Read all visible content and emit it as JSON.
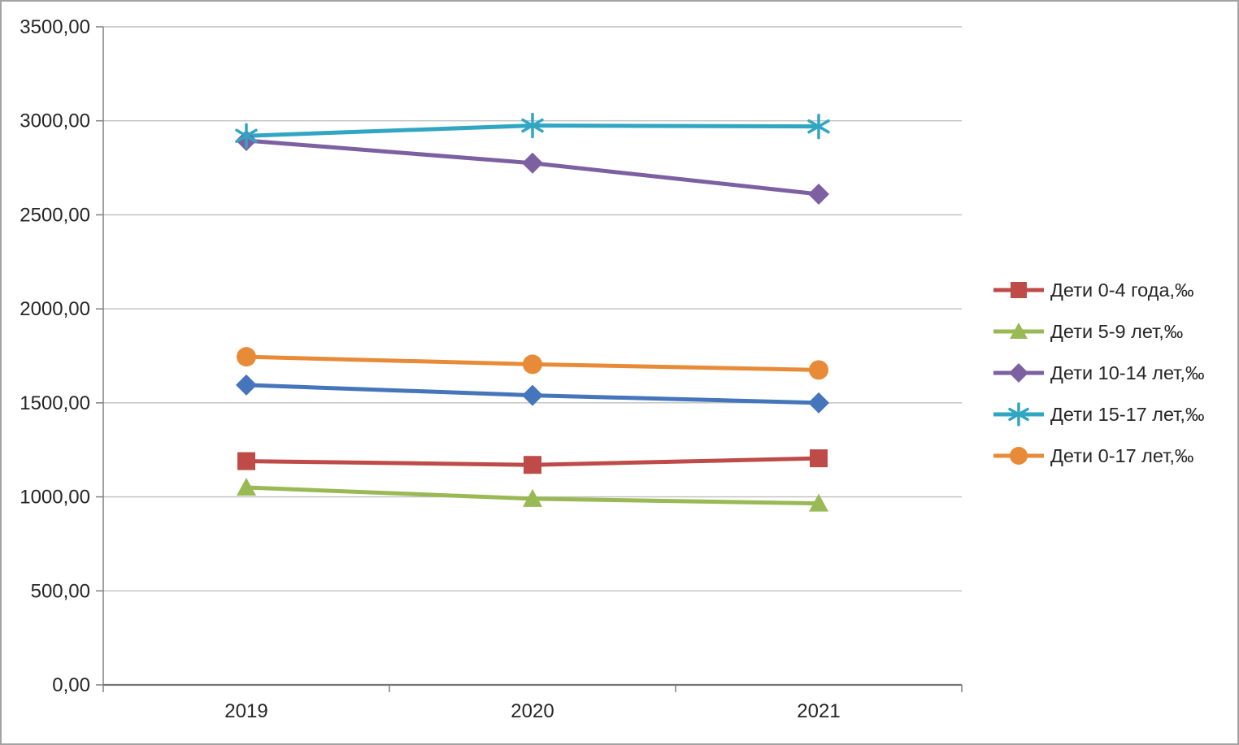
{
  "chart_data": {
    "type": "line",
    "title": "",
    "xlabel": "",
    "ylabel": "",
    "categories": [
      "2019",
      "2020",
      "2021"
    ],
    "ylim": [
      0,
      3500
    ],
    "ytick_step": 500,
    "yticks": [
      {
        "value": 3500,
        "label": "3500,00"
      },
      {
        "value": 3000,
        "label": "3000,00"
      },
      {
        "value": 2500,
        "label": "2500,00"
      },
      {
        "value": 2000,
        "label": "2000,00"
      },
      {
        "value": 1500,
        "label": "1500,00"
      },
      {
        "value": 1000,
        "label": "1000,00"
      },
      {
        "value": 500,
        "label": "500,00"
      },
      {
        "value": 0,
        "label": "0,00"
      }
    ],
    "grid": true,
    "legend_position": "right",
    "series": [
      {
        "name": "",
        "marker": "diamond",
        "color": "#4575BA",
        "in_legend": false,
        "values": [
          1595,
          1540,
          1500
        ]
      },
      {
        "name": "Дети 0-4 года,‰",
        "marker": "square",
        "color": "#BE4B48",
        "in_legend": true,
        "values": [
          1190,
          1170,
          1205
        ]
      },
      {
        "name": "Дети 5-9 лет,‰",
        "marker": "triangle",
        "color": "#98B954",
        "in_legend": true,
        "values": [
          1050,
          990,
          965
        ]
      },
      {
        "name": "Дети 10-14 лет,‰",
        "marker": "diamond",
        "color": "#7D60A2",
        "in_legend": true,
        "values": [
          2895,
          2775,
          2610
        ]
      },
      {
        "name": "Дети 15-17 лет,‰",
        "marker": "star",
        "color": "#31A6C2",
        "in_legend": true,
        "values": [
          2920,
          2975,
          2970
        ]
      },
      {
        "name": "Дети 0-17 лет,‰",
        "marker": "circle",
        "color": "#E88B38",
        "in_legend": true,
        "values": [
          1745,
          1705,
          1675
        ]
      }
    ],
    "colors": {
      "gridline": "#BFBFBF",
      "axis": "#808080",
      "x_axis": "#747474",
      "text": "#262626"
    }
  }
}
